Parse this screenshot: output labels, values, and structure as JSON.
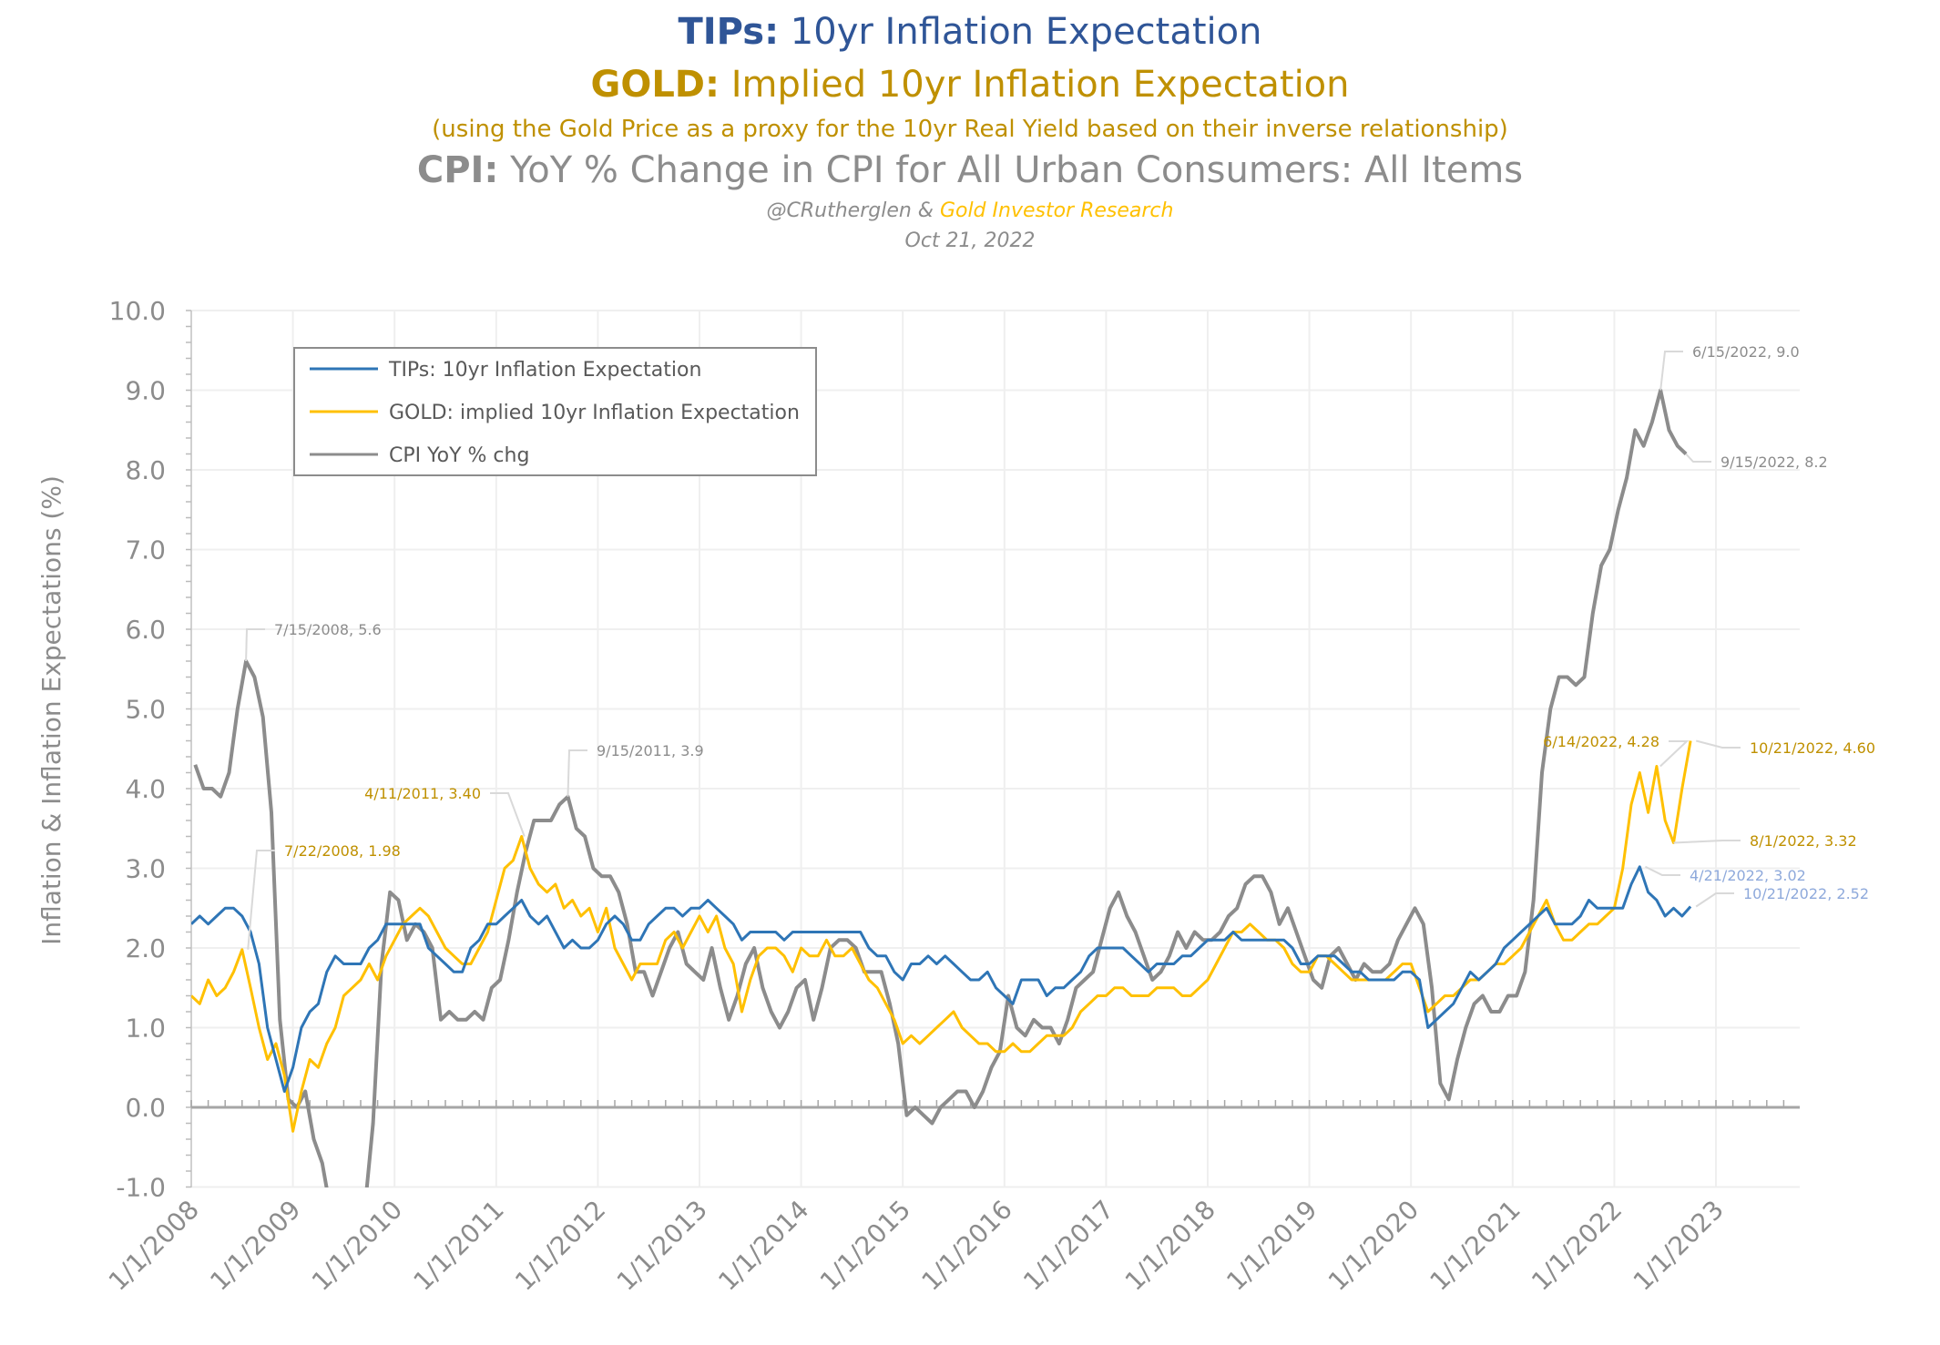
{
  "title": {
    "line1_bold": "TIPs:",
    "line1_rest": " 10yr Inflation Expectation",
    "line2_bold": "GOLD:",
    "line2_rest": " Implied 10yr Inflation Expectation",
    "line3": "(using the Gold Price as a proxy for the 10yr Real Yield based on their inverse relationship)",
    "line4_bold": "CPI:",
    "line4_rest": " YoY % Change in CPI for All Urban Consumers: All Items",
    "credit_author": "@CRutherglen & ",
    "credit_org": "Gold Investor Research",
    "date": "Oct 21, 2022"
  },
  "colors": {
    "tips": "#2E75B6",
    "gold": "#FFC000",
    "cpi": "#8C8C8C",
    "title_blue": "#2F5597",
    "title_gold": "#BF9000",
    "ann_blue": "#8EA9DB",
    "grid": "#EFEFEF"
  },
  "chart_data": {
    "type": "line",
    "ylabel": "Inflation & Inflation Expectations  (%)",
    "ylim": [
      -1.0,
      10.0
    ],
    "xlim": [
      "1/1/2008",
      "2/1/2024"
    ],
    "y_ticks": [
      "-1.0",
      "0.0",
      "1.0",
      "2.0",
      "3.0",
      "4.0",
      "5.0",
      "6.0",
      "7.0",
      "8.0",
      "9.0",
      "10.0"
    ],
    "x_ticks": [
      "1/1/2008",
      "1/1/2009",
      "1/1/2010",
      "1/1/2011",
      "1/1/2012",
      "1/1/2013",
      "1/1/2014",
      "1/1/2015",
      "1/1/2016",
      "1/1/2017",
      "1/1/2018",
      "1/1/2019",
      "1/1/2020",
      "1/1/2021",
      "1/1/2022",
      "1/1/2023"
    ],
    "grid": true,
    "legend_position": "top-left",
    "series": [
      {
        "name": "TIPs: 10yr Inflation Expectation",
        "key": "tips",
        "monthly_values_by_year": {
          "2008": [
            2.3,
            2.4,
            2.3,
            2.4,
            2.5,
            2.5,
            2.4,
            2.2,
            1.8,
            1.0,
            0.6,
            0.2
          ],
          "2009": [
            0.5,
            1.0,
            1.2,
            1.3,
            1.7,
            1.9,
            1.8,
            1.8,
            1.8,
            2.0,
            2.1,
            2.3
          ],
          "2010": [
            2.3,
            2.3,
            2.3,
            2.3,
            2.0,
            1.9,
            1.8,
            1.7,
            1.7,
            2.0,
            2.1,
            2.3
          ],
          "2011": [
            2.3,
            2.4,
            2.5,
            2.6,
            2.4,
            2.3,
            2.4,
            2.2,
            2.0,
            2.1,
            2.0,
            2.0
          ],
          "2012": [
            2.1,
            2.3,
            2.4,
            2.3,
            2.1,
            2.1,
            2.3,
            2.4,
            2.5,
            2.5,
            2.4,
            2.5
          ],
          "2013": [
            2.5,
            2.6,
            2.5,
            2.4,
            2.3,
            2.1,
            2.2,
            2.2,
            2.2,
            2.2,
            2.1,
            2.2
          ],
          "2014": [
            2.2,
            2.2,
            2.2,
            2.2,
            2.2,
            2.2,
            2.2,
            2.2,
            2.0,
            1.9,
            1.9,
            1.7
          ],
          "2015": [
            1.6,
            1.8,
            1.8,
            1.9,
            1.8,
            1.9,
            1.8,
            1.7,
            1.6,
            1.6,
            1.7,
            1.5
          ],
          "2016": [
            1.4,
            1.3,
            1.6,
            1.6,
            1.6,
            1.4,
            1.5,
            1.5,
            1.6,
            1.7,
            1.9,
            2.0
          ],
          "2017": [
            2.0,
            2.0,
            2.0,
            1.9,
            1.8,
            1.7,
            1.8,
            1.8,
            1.8,
            1.9,
            1.9,
            2.0
          ],
          "2018": [
            2.1,
            2.1,
            2.1,
            2.2,
            2.1,
            2.1,
            2.1,
            2.1,
            2.1,
            2.1,
            2.0,
            1.8
          ],
          "2019": [
            1.8,
            1.9,
            1.9,
            1.9,
            1.8,
            1.7,
            1.7,
            1.6,
            1.6,
            1.6,
            1.6,
            1.7
          ],
          "2020": [
            1.7,
            1.6,
            1.0,
            1.1,
            1.2,
            1.3,
            1.5,
            1.7,
            1.6,
            1.7,
            1.8,
            2.0
          ],
          "2021": [
            2.1,
            2.2,
            2.3,
            2.4,
            2.5,
            2.3,
            2.3,
            2.3,
            2.4,
            2.6,
            2.5,
            2.5
          ],
          "2022": [
            2.5,
            2.5,
            2.8,
            3.02,
            2.7,
            2.6,
            2.4,
            2.5,
            2.4,
            2.52
          ]
        }
      },
      {
        "name": "GOLD: implied 10yr Inflation Expectation",
        "key": "gold",
        "monthly_values_by_year": {
          "2008": [
            1.4,
            1.3,
            1.6,
            1.4,
            1.5,
            1.7,
            1.98,
            1.5,
            1.0,
            0.6,
            0.8,
            0.4
          ],
          "2009": [
            -0.3,
            0.2,
            0.6,
            0.5,
            0.8,
            1.0,
            1.4,
            1.5,
            1.6,
            1.8,
            1.6,
            1.9
          ],
          "2010": [
            2.1,
            2.3,
            2.4,
            2.5,
            2.4,
            2.2,
            2.0,
            1.9,
            1.8,
            1.8,
            2.0,
            2.2
          ],
          "2011": [
            2.6,
            3.0,
            3.1,
            3.4,
            3.0,
            2.8,
            2.7,
            2.8,
            2.5,
            2.6,
            2.4,
            2.5
          ],
          "2012": [
            2.2,
            2.5,
            2.0,
            1.8,
            1.6,
            1.8,
            1.8,
            1.8,
            2.1,
            2.2,
            2.0,
            2.2
          ],
          "2013": [
            2.4,
            2.2,
            2.4,
            2.0,
            1.8,
            1.2,
            1.6,
            1.9,
            2.0,
            2.0,
            1.9,
            1.7
          ],
          "2014": [
            2.0,
            1.9,
            1.9,
            2.1,
            1.9,
            1.9,
            2.0,
            1.8,
            1.6,
            1.5,
            1.3,
            1.1
          ],
          "2015": [
            0.8,
            0.9,
            0.8,
            0.9,
            1.0,
            1.1,
            1.2,
            1.0,
            0.9,
            0.8,
            0.8,
            0.7
          ],
          "2016": [
            0.7,
            0.8,
            0.7,
            0.7,
            0.8,
            0.9,
            0.9,
            0.9,
            1.0,
            1.2,
            1.3,
            1.4
          ],
          "2017": [
            1.4,
            1.5,
            1.5,
            1.4,
            1.4,
            1.4,
            1.5,
            1.5,
            1.5,
            1.4,
            1.4,
            1.5
          ],
          "2018": [
            1.6,
            1.8,
            2.0,
            2.2,
            2.2,
            2.3,
            2.2,
            2.1,
            2.1,
            2.0,
            1.8,
            1.7
          ],
          "2019": [
            1.7,
            1.9,
            1.9,
            1.8,
            1.7,
            1.6,
            1.6,
            1.6,
            1.6,
            1.6,
            1.7,
            1.8
          ],
          "2020": [
            1.8,
            1.5,
            1.2,
            1.3,
            1.4,
            1.4,
            1.5,
            1.6,
            1.6,
            1.7,
            1.8,
            1.8
          ],
          "2021": [
            1.9,
            2.0,
            2.2,
            2.4,
            2.6,
            2.3,
            2.1,
            2.1,
            2.2,
            2.3,
            2.3,
            2.4
          ],
          "2022": [
            2.5,
            3.0,
            3.8,
            4.2,
            3.7,
            4.28,
            3.6,
            3.32,
            4.0,
            4.6
          ]
        }
      },
      {
        "name": "CPI YoY % chg",
        "key": "cpi",
        "monthly_values_by_year": {
          "2008": [
            4.3,
            4.0,
            4.0,
            3.9,
            4.2,
            5.0,
            5.6,
            5.4,
            4.9,
            3.7,
            1.1,
            0.1
          ],
          "2009": [
            0.0,
            0.2,
            -0.4,
            -0.7,
            -1.3,
            -1.4,
            -2.1,
            -1.5,
            -1.3,
            -0.2,
            1.8,
            2.7
          ],
          "2010": [
            2.6,
            2.1,
            2.3,
            2.2,
            2.0,
            1.1,
            1.2,
            1.1,
            1.1,
            1.2,
            1.1,
            1.5
          ],
          "2011": [
            1.6,
            2.1,
            2.7,
            3.2,
            3.6,
            3.6,
            3.6,
            3.8,
            3.9,
            3.5,
            3.4,
            3.0
          ],
          "2012": [
            2.9,
            2.9,
            2.7,
            2.3,
            1.7,
            1.7,
            1.4,
            1.7,
            2.0,
            2.2,
            1.8,
            1.7
          ],
          "2013": [
            1.6,
            2.0,
            1.5,
            1.1,
            1.4,
            1.8,
            2.0,
            1.5,
            1.2,
            1.0,
            1.2,
            1.5
          ],
          "2014": [
            1.6,
            1.1,
            1.5,
            2.0,
            2.1,
            2.1,
            2.0,
            1.7,
            1.7,
            1.7,
            1.3,
            0.8
          ],
          "2015": [
            -0.1,
            0.0,
            -0.1,
            -0.2,
            0.0,
            0.1,
            0.2,
            0.2,
            0.0,
            0.2,
            0.5,
            0.7
          ],
          "2016": [
            1.4,
            1.0,
            0.9,
            1.1,
            1.0,
            1.0,
            0.8,
            1.1,
            1.5,
            1.6,
            1.7,
            2.1
          ],
          "2017": [
            2.5,
            2.7,
            2.4,
            2.2,
            1.9,
            1.6,
            1.7,
            1.9,
            2.2,
            2.0,
            2.2,
            2.1
          ],
          "2018": [
            2.1,
            2.2,
            2.4,
            2.5,
            2.8,
            2.9,
            2.9,
            2.7,
            2.3,
            2.5,
            2.2,
            1.9
          ],
          "2019": [
            1.6,
            1.5,
            1.9,
            2.0,
            1.8,
            1.6,
            1.8,
            1.7,
            1.7,
            1.8,
            2.1,
            2.3
          ],
          "2020": [
            2.5,
            2.3,
            1.5,
            0.3,
            0.1,
            0.6,
            1.0,
            1.3,
            1.4,
            1.2,
            1.2,
            1.4
          ],
          "2021": [
            1.4,
            1.7,
            2.6,
            4.2,
            5.0,
            5.4,
            5.4,
            5.3,
            5.4,
            6.2,
            6.8,
            7.0
          ],
          "2022": [
            7.5,
            7.9,
            8.5,
            8.3,
            8.6,
            9.0,
            8.5,
            8.3,
            8.2
          ]
        }
      }
    ],
    "annotations": [
      {
        "series": "cpi",
        "date": "7/15/2008",
        "value": 5.6,
        "label": "7/15/2008, 5.6"
      },
      {
        "series": "gold",
        "date": "7/22/2008",
        "value": 1.98,
        "label": "7/22/2008, 1.98"
      },
      {
        "series": "gold",
        "date": "4/11/2011",
        "value": 3.4,
        "label": "4/11/2011, 3.40"
      },
      {
        "series": "cpi",
        "date": "9/15/2011",
        "value": 3.9,
        "label": "9/15/2011, 3.9"
      },
      {
        "series": "cpi",
        "date": "6/15/2022",
        "value": 9.0,
        "label": "6/15/2022, 9.0"
      },
      {
        "series": "cpi",
        "date": "9/15/2022",
        "value": 8.2,
        "label": "9/15/2022, 8.2"
      },
      {
        "series": "gold",
        "date": "6/14/2022",
        "value": 4.28,
        "label": "6/14/2022, 4.28"
      },
      {
        "series": "gold",
        "date": "10/21/2022",
        "value": 4.6,
        "label": "10/21/2022, 4.60"
      },
      {
        "series": "gold",
        "date": "8/1/2022",
        "value": 3.32,
        "label": "8/1/2022, 3.32"
      },
      {
        "series": "tips",
        "date": "4/21/2022",
        "value": 3.02,
        "label": "4/21/2022, 3.02"
      },
      {
        "series": "tips",
        "date": "10/21/2022",
        "value": 2.52,
        "label": "10/21/2022, 2.52"
      }
    ]
  }
}
